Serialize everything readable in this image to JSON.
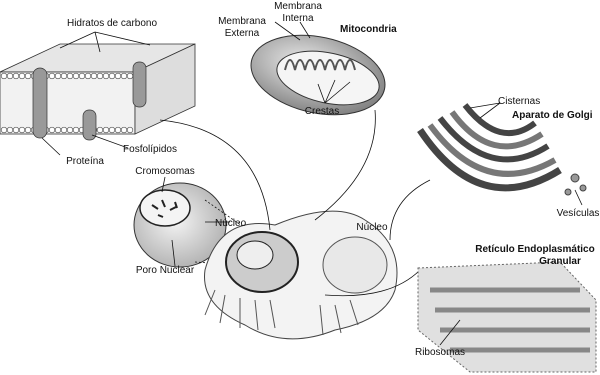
{
  "labels": {
    "hidratos": "Hidratos de carbono",
    "proteina": "Proteína",
    "fosfolipidos": "Fosfolípidos",
    "membrana_externa": [
      "Membrana",
      "Externa"
    ],
    "membrana_interna": [
      "Membrana",
      "Interna"
    ],
    "mitocondria": "Mitocondria",
    "crestas": "Crestas",
    "cisternas": "Cisternas",
    "golgi": "Aparato de Golgi",
    "vesiculas": "Vesículas",
    "cromosomas": "Cromosomas",
    "nucleo_1": "Núcleo",
    "poro_nuclear": "Poro Nuclear",
    "nucleo_2": "Núcleo",
    "reticulo": [
      "Retículo Endoplasmático",
      "Granular"
    ],
    "ribosomas": "Ribosomas"
  }
}
